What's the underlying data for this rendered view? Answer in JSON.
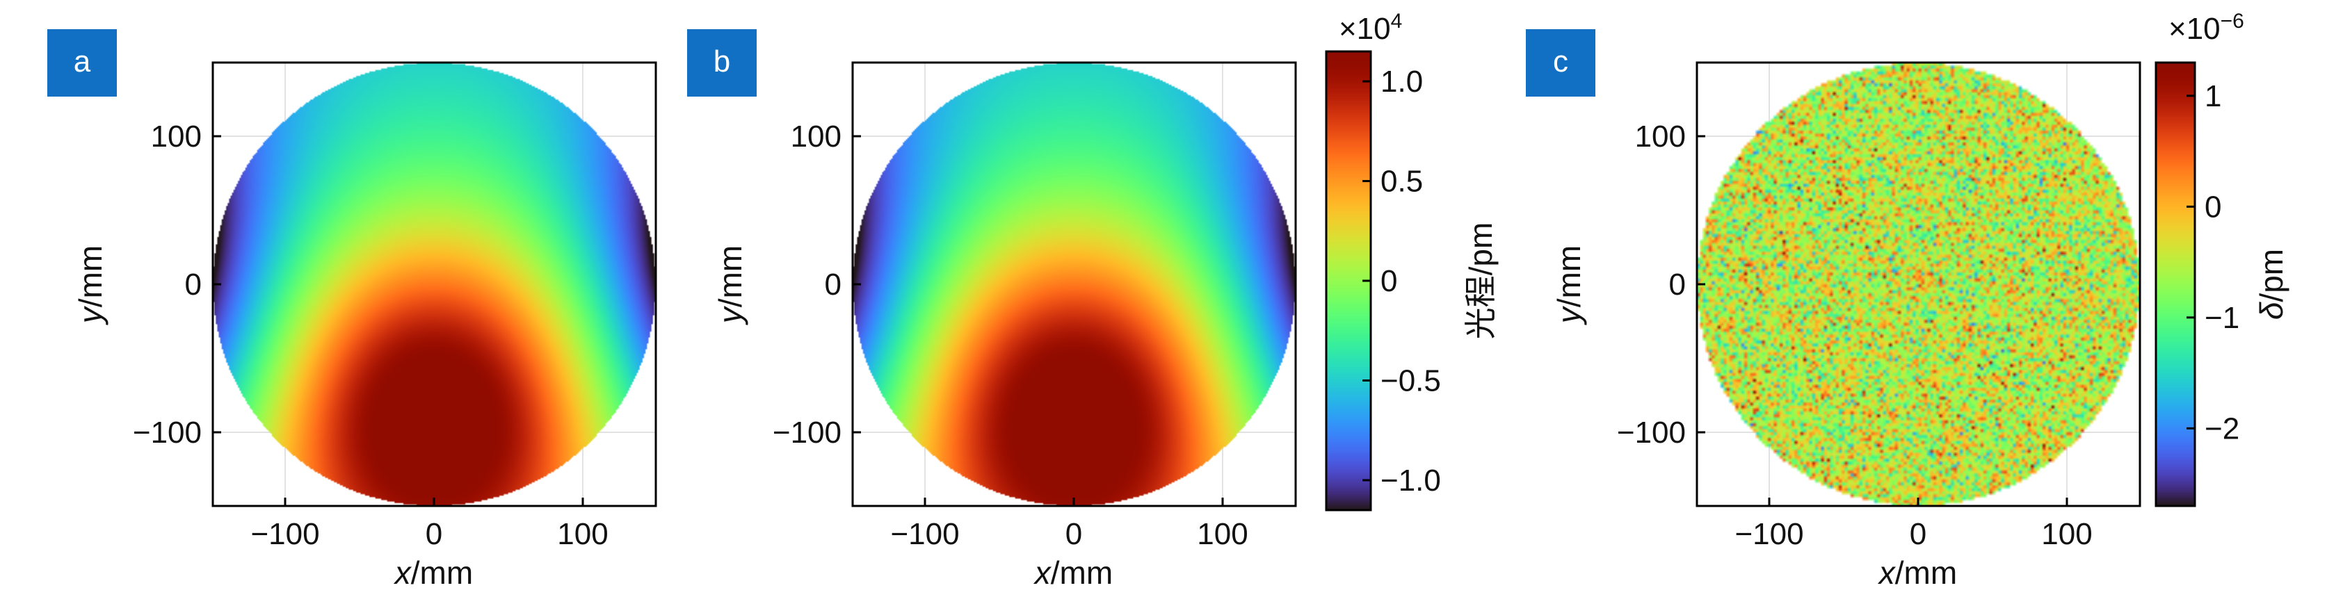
{
  "panel_label_color": "#1170c4",
  "chart_data": [
    {
      "id": "a",
      "type": "heatmap",
      "panel_label": "a",
      "title": "",
      "xlabel_italic": "x",
      "xlabel_unit": "/mm",
      "ylabel_italic": "y",
      "ylabel_unit": "/mm",
      "xlim": [
        -150,
        150
      ],
      "ylim": [
        -150,
        150
      ],
      "xticks": [
        -100,
        0,
        100
      ],
      "yticks": [
        -100,
        0,
        100
      ],
      "xtick_labels": [
        "−100",
        "0",
        "100"
      ],
      "ytick_labels": [
        "−100",
        "0",
        "100"
      ],
      "grid": true,
      "aperture_radius": 150,
      "colormap": "turbo",
      "field": "optical_path",
      "peak_center": [
        0,
        -85
      ],
      "value_range": [
        -11000,
        11500
      ]
    },
    {
      "id": "b",
      "type": "heatmap",
      "panel_label": "b",
      "title": "",
      "xlabel_italic": "x",
      "xlabel_unit": "/mm",
      "ylabel_italic": "y",
      "ylabel_unit": "/mm",
      "xlim": [
        -150,
        150
      ],
      "ylim": [
        -150,
        150
      ],
      "xticks": [
        -100,
        0,
        100
      ],
      "yticks": [
        -100,
        0,
        100
      ],
      "xtick_labels": [
        "−100",
        "0",
        "100"
      ],
      "ytick_labels": [
        "−100",
        "0",
        "100"
      ],
      "grid": true,
      "aperture_radius": 150,
      "colormap": "turbo",
      "field": "optical_path",
      "peak_center": [
        0,
        -85
      ],
      "value_range": [
        -11000,
        11500
      ],
      "colorbar": {
        "label": "光程/pm",
        "multiplier_base": "×10",
        "multiplier_exp": "4",
        "range": [
          -1.15,
          1.15
        ],
        "ticks": [
          1.0,
          0.5,
          0,
          -0.5,
          -1.0
        ],
        "tick_labels": [
          "1.0",
          "0.5",
          "0",
          "−0.5",
          "−1.0"
        ]
      }
    },
    {
      "id": "c",
      "type": "heatmap",
      "panel_label": "c",
      "title": "",
      "xlabel_italic": "x",
      "xlabel_unit": "/mm",
      "ylabel_italic": "y",
      "ylabel_unit": "/mm",
      "xlim": [
        -150,
        150
      ],
      "ylim": [
        -150,
        150
      ],
      "xticks": [
        -100,
        0,
        100
      ],
      "yticks": [
        -100,
        0,
        100
      ],
      "xtick_labels": [
        "−100",
        "0",
        "100"
      ],
      "ytick_labels": [
        "−100",
        "0",
        "100"
      ],
      "grid": true,
      "aperture_radius": 150,
      "colormap": "turbo",
      "field": "residual_noise",
      "value_range": [
        -2.7,
        1.3
      ],
      "colorbar": {
        "label_italic": "δ",
        "label_unit": "/pm",
        "multiplier_base": "×10",
        "multiplier_exp": "−6",
        "range": [
          -2.7,
          1.3
        ],
        "ticks": [
          1,
          0,
          -1,
          -2
        ],
        "tick_labels": [
          "1",
          "0",
          "−1",
          "−2"
        ]
      }
    }
  ]
}
